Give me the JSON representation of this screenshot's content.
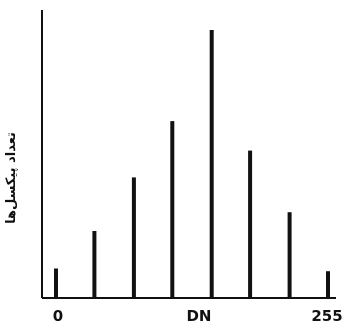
{
  "chart_data": {
    "type": "bar",
    "title": "",
    "xlabel": "DN",
    "ylabel": "تعداد پیکسل‌ها",
    "x_tick_labels": [
      "0",
      "255"
    ],
    "xlim": [
      0,
      255
    ],
    "ylim": [
      0,
      100
    ],
    "grid": false,
    "x": [
      0,
      36,
      73,
      109,
      146,
      182,
      219,
      255
    ],
    "values": [
      11,
      25,
      45,
      66,
      100,
      55,
      32,
      10
    ]
  }
}
